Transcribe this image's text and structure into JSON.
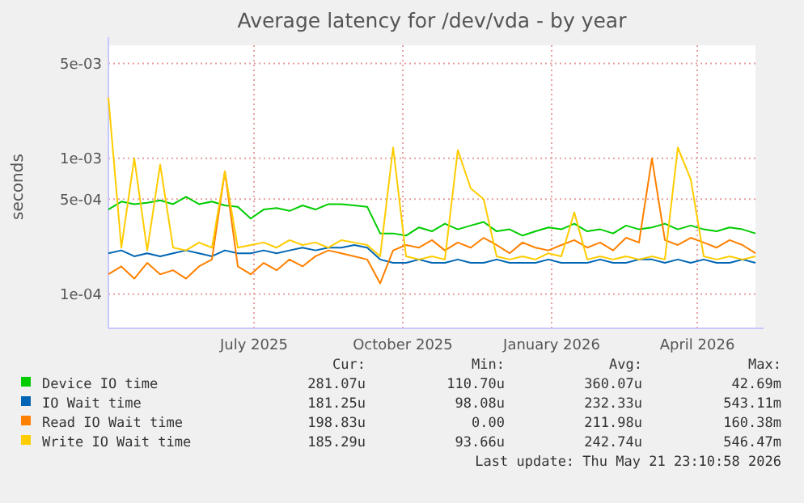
{
  "chart_data": {
    "type": "line",
    "title": "Average latency for /dev/vda - by year",
    "ylabel": "seconds",
    "log": "y",
    "grid": true,
    "legend": "bottom",
    "marker": "none",
    "line_style": "solid",
    "x": [
      "2025-04-16",
      "2025-04-24",
      "2025-05-02",
      "2025-05-10",
      "2025-05-18",
      "2025-05-26",
      "2025-06-03",
      "2025-06-11",
      "2025-06-19",
      "2025-06-27",
      "2025-07-05",
      "2025-07-13",
      "2025-07-21",
      "2025-07-29",
      "2025-08-06",
      "2025-08-14",
      "2025-08-22",
      "2025-08-30",
      "2025-09-07",
      "2025-09-15",
      "2025-09-23",
      "2025-10-01",
      "2025-10-09",
      "2025-10-17",
      "2025-10-25",
      "2025-11-02",
      "2025-11-10",
      "2025-11-18",
      "2025-11-26",
      "2025-12-04",
      "2025-12-12",
      "2025-12-20",
      "2025-12-28",
      "2026-01-05",
      "2026-01-13",
      "2026-01-21",
      "2026-01-29",
      "2026-02-06",
      "2026-02-14",
      "2026-02-22",
      "2026-03-02",
      "2026-03-10",
      "2026-03-18",
      "2026-03-26",
      "2026-04-03",
      "2026-04-11",
      "2026-04-19",
      "2026-04-27",
      "2026-05-05",
      "2026-05-13",
      "2026-05-21"
    ],
    "xlim": [
      "2025-04-16",
      "2026-05-21"
    ],
    "xticks": [
      {
        "value": "2025-07-15",
        "label": "July 2025"
      },
      {
        "value": "2025-10-15",
        "label": "October 2025"
      },
      {
        "value": "2026-01-15",
        "label": "January 2026"
      },
      {
        "value": "2026-04-15",
        "label": "April 2026"
      }
    ],
    "ylim": [
      5.6e-05,
      0.0068
    ],
    "yticks": [
      {
        "value": 0.005,
        "label": "5e-03"
      },
      {
        "value": 0.001,
        "label": "1e-03"
      },
      {
        "value": 0.0005,
        "label": "5e-04"
      },
      {
        "value": 0.0001,
        "label": "1e-04"
      }
    ],
    "series": [
      {
        "name": "Device IO time",
        "color": "#00cc00",
        "values": [
          0.00042,
          0.00048,
          0.00046,
          0.00047,
          0.00049,
          0.00046,
          0.00052,
          0.00046,
          0.00048,
          0.00045,
          0.00044,
          0.00036,
          0.00042,
          0.00043,
          0.00041,
          0.00045,
          0.00042,
          0.00046,
          0.00046,
          0.00045,
          0.00044,
          0.00028,
          0.00028,
          0.00027,
          0.00031,
          0.00029,
          0.00033,
          0.0003,
          0.00032,
          0.00034,
          0.00029,
          0.0003,
          0.00027,
          0.00029,
          0.00031,
          0.0003,
          0.00033,
          0.00029,
          0.0003,
          0.00028,
          0.00032,
          0.0003,
          0.00031,
          0.00033,
          0.0003,
          0.00032,
          0.0003,
          0.00029,
          0.00031,
          0.0003,
          0.00028
        ]
      },
      {
        "name": "IO Wait time",
        "color": "#0066b3",
        "values": [
          0.0002,
          0.00021,
          0.00019,
          0.0002,
          0.00019,
          0.0002,
          0.00021,
          0.0002,
          0.00019,
          0.00021,
          0.0002,
          0.0002,
          0.00021,
          0.0002,
          0.00021,
          0.00022,
          0.00021,
          0.00022,
          0.00022,
          0.00023,
          0.00022,
          0.00018,
          0.00017,
          0.00017,
          0.00018,
          0.00017,
          0.00017,
          0.00018,
          0.00017,
          0.00017,
          0.00018,
          0.00017,
          0.00017,
          0.00017,
          0.00018,
          0.00017,
          0.00017,
          0.00017,
          0.00018,
          0.00017,
          0.00017,
          0.00018,
          0.00018,
          0.00017,
          0.00018,
          0.00017,
          0.00018,
          0.00017,
          0.00017,
          0.00018,
          0.00017
        ]
      },
      {
        "name": "Read IO Wait time",
        "color": "#ff8000",
        "values": [
          0.00014,
          0.00016,
          0.00013,
          0.00017,
          0.00014,
          0.00015,
          0.00013,
          0.00016,
          0.00018,
          0.0008,
          0.00016,
          0.00014,
          0.00017,
          0.00015,
          0.00018,
          0.00016,
          0.00019,
          0.00021,
          0.0002,
          0.00019,
          0.00018,
          0.00012,
          0.00021,
          0.00023,
          0.00022,
          0.00025,
          0.00021,
          0.00024,
          0.00022,
          0.00026,
          0.00023,
          0.0002,
          0.00024,
          0.00022,
          0.00021,
          0.00023,
          0.00025,
          0.00022,
          0.00024,
          0.00021,
          0.00026,
          0.00024,
          0.001,
          0.00025,
          0.00023,
          0.00026,
          0.00024,
          0.00022,
          0.00025,
          0.00023,
          0.0002
        ]
      },
      {
        "name": "Write IO Wait time",
        "color": "#ffcc00",
        "values": [
          0.0028,
          0.00022,
          0.001,
          0.00021,
          0.0009,
          0.00022,
          0.00021,
          0.00024,
          0.00022,
          0.0008,
          0.00022,
          0.00023,
          0.00024,
          0.00022,
          0.00025,
          0.00023,
          0.00024,
          0.00022,
          0.00025,
          0.00024,
          0.00023,
          0.00019,
          0.0012,
          0.00019,
          0.00018,
          0.00019,
          0.00018,
          0.00115,
          0.0006,
          0.0005,
          0.00019,
          0.00018,
          0.00019,
          0.00018,
          0.0002,
          0.00019,
          0.0004,
          0.00018,
          0.00019,
          0.00018,
          0.00019,
          0.00018,
          0.00019,
          0.00018,
          0.0012,
          0.0007,
          0.00019,
          0.00018,
          0.00019,
          0.00018,
          0.00019
        ]
      }
    ],
    "annotations": [
      "Cur:",
      "Min:",
      "Avg:",
      "Max:",
      "281.07u",
      "110.70u",
      "360.07u",
      "42.69m",
      "181.25u",
      "98.08u",
      "232.33u",
      "543.11m",
      "198.83u",
      "0.00",
      "211.98u",
      "160.38m",
      "185.29u",
      "93.66u",
      "242.74u",
      "546.47m",
      "Last update: Thu May 21 23:10:58 2026"
    ]
  }
}
